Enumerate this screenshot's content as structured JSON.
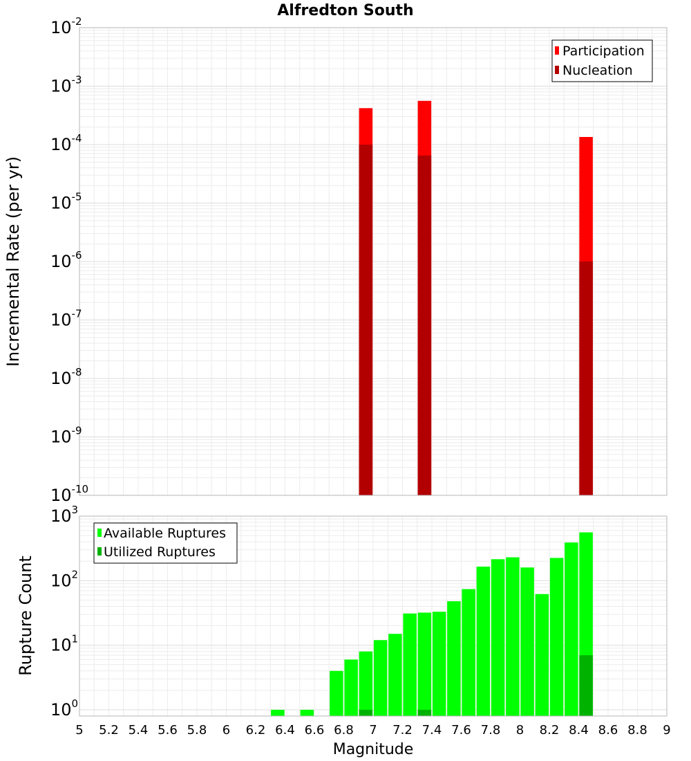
{
  "chart_data": [
    {
      "type": "bar",
      "title": "Alfredton South",
      "ylabel": "Incremental Rate (per yr)",
      "xlim": [
        5,
        9
      ],
      "ylim": [
        1e-10,
        0.01
      ],
      "yscale": "log",
      "grid": true,
      "legend_position": "top-right",
      "ytick_base": "10",
      "yticks": [
        {
          "value": 0.01,
          "exp": "-2"
        },
        {
          "value": 0.001,
          "exp": "-3"
        },
        {
          "value": 0.0001,
          "exp": "-4"
        },
        {
          "value": 1e-05,
          "exp": "-5"
        },
        {
          "value": 1e-06,
          "exp": "-6"
        },
        {
          "value": 1e-07,
          "exp": "-7"
        },
        {
          "value": 1e-08,
          "exp": "-8"
        },
        {
          "value": 1e-09,
          "exp": "-9"
        },
        {
          "value": 1e-10,
          "exp": "-10"
        }
      ],
      "series": [
        {
          "name": "Participation",
          "color": "#ff0000",
          "x": [
            6.95,
            7.35,
            8.45
          ],
          "values": [
            0.00042,
            0.00056,
            0.000135
          ]
        },
        {
          "name": "Nucleation",
          "color": "#b20000",
          "x": [
            6.95,
            7.35,
            8.45
          ],
          "values": [
            0.0001,
            6.5e-05,
            1e-06
          ]
        }
      ]
    },
    {
      "type": "bar",
      "xlabel": "Magnitude",
      "ylabel": "Rupture Count",
      "xlim": [
        5,
        9
      ],
      "ylim": [
        0.8,
        1000
      ],
      "yscale": "log",
      "grid": true,
      "legend_position": "top-left",
      "ytick_base": "10",
      "yticks": [
        {
          "value": 1,
          "exp": "0"
        },
        {
          "value": 10,
          "exp": "1"
        },
        {
          "value": 100,
          "exp": "2"
        },
        {
          "value": 1000,
          "exp": "3"
        }
      ],
      "xticks": [
        "5",
        "5.2",
        "5.4",
        "5.6",
        "5.8",
        "6",
        "6.2",
        "6.4",
        "6.6",
        "6.8",
        "7",
        "7.2",
        "7.4",
        "7.6",
        "7.8",
        "8",
        "8.2",
        "8.4",
        "8.6",
        "8.8",
        "9"
      ],
      "series": [
        {
          "name": "Available Ruptures",
          "color": "#00ff00",
          "x": [
            6.35,
            6.55,
            6.75,
            6.85,
            6.95,
            7.05,
            7.15,
            7.25,
            7.35,
            7.45,
            7.55,
            7.65,
            7.75,
            7.85,
            7.95,
            8.05,
            8.15,
            8.25,
            8.35,
            8.45
          ],
          "values": [
            1,
            1,
            4,
            6,
            8,
            12,
            15,
            31,
            32,
            33,
            48,
            74,
            165,
            215,
            230,
            160,
            62,
            225,
            390,
            560
          ]
        },
        {
          "name": "Utilized Ruptures",
          "color": "#00b200",
          "x": [
            6.95,
            7.35,
            8.45
          ],
          "values": [
            1,
            1,
            7
          ]
        }
      ]
    }
  ]
}
